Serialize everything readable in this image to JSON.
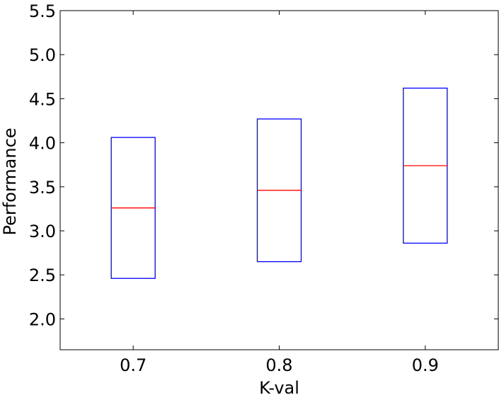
{
  "chart_data": {
    "type": "box",
    "title": "",
    "xlabel": "K-val",
    "ylabel": "Performance",
    "categories": [
      "0.7",
      "0.8",
      "0.9"
    ],
    "boxes": [
      {
        "category": "0.7",
        "q1": 2.46,
        "median": 3.26,
        "q3": 4.06
      },
      {
        "category": "0.8",
        "q1": 2.65,
        "median": 3.46,
        "q3": 4.27
      },
      {
        "category": "0.9",
        "q1": 2.86,
        "median": 3.74,
        "q3": 4.62
      }
    ],
    "ylim": [
      1.65,
      5.5
    ],
    "yticks": [
      "2.0",
      "2.5",
      "3.0",
      "3.5",
      "4.0",
      "4.5",
      "5.0",
      "5.5"
    ],
    "grid": false,
    "legend": "none",
    "colors": {
      "box": "#0000ff",
      "median": "#ff0000",
      "axes": "#000000"
    }
  }
}
